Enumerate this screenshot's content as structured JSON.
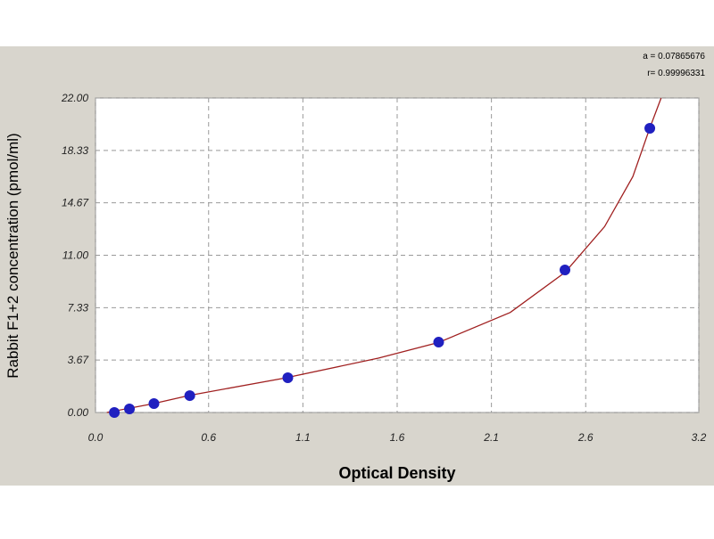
{
  "chart_data": {
    "type": "scatter",
    "x_label": "Optical Density",
    "y_label": "Rabbit F1+2 concentration (pmol/ml)",
    "annotations": [
      "a = 0.07865676",
      "r= 0.99996331"
    ],
    "xlim": [
      0,
      3.2
    ],
    "ylim": [
      0,
      22
    ],
    "xticks": [
      {
        "value": 0,
        "label": "0.0"
      },
      0.6,
      1.1,
      1.6,
      2.1,
      2.6,
      3.2
    ],
    "yticks": [
      {
        "value": 0,
        "label": "0.00"
      },
      3.67,
      7.33,
      {
        "value": 11,
        "label": "11.00"
      },
      14.67,
      18.33,
      {
        "value": 22,
        "label": "22.00"
      }
    ],
    "grid": true,
    "points": {
      "color": "#2020c0",
      "x": [
        0.1,
        0.18,
        0.31,
        0.5,
        1.02,
        1.82,
        2.49,
        2.94
      ],
      "y": [
        0,
        0.25,
        0.62,
        1.18,
        2.43,
        4.92,
        9.97,
        19.88
      ]
    },
    "fit": {
      "color": "#a02020",
      "x": [
        0.06,
        0.3,
        0.5,
        1.0,
        1.5,
        1.82,
        2.2,
        2.49,
        2.7,
        2.85,
        2.94,
        3.0
      ],
      "y": [
        0,
        0.6,
        1.2,
        2.4,
        3.8,
        4.9,
        7.0,
        9.8,
        13.0,
        16.5,
        19.9,
        22
      ]
    }
  }
}
